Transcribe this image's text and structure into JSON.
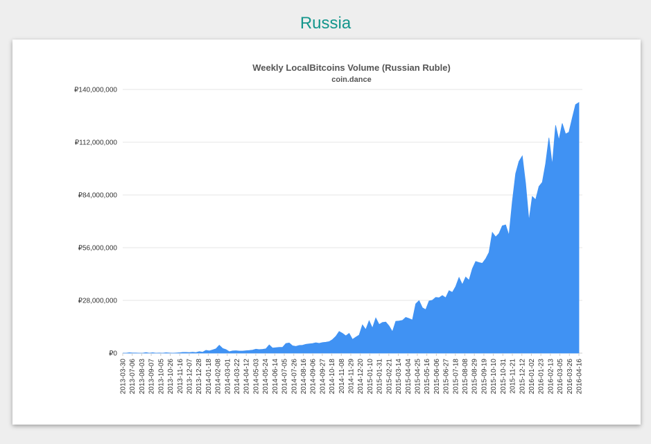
{
  "page": {
    "heading": "Russia"
  },
  "colors": {
    "heading": "#14968c",
    "area_fill": "#4092f3",
    "gridline": "#e6e6e6",
    "axis_text": "#333333"
  },
  "chart_data": {
    "type": "area",
    "title": "Weekly LocalBitcoins Volume (Russian Ruble)",
    "subtitle": "coin.dance",
    "xlabel": "",
    "ylabel": "",
    "ylim": [
      0,
      140000000
    ],
    "grid": true,
    "legend": "none",
    "y_ticks": [
      {
        "value": 0,
        "label": "₽0"
      },
      {
        "value": 28000000,
        "label": "₽28,000,000"
      },
      {
        "value": 56000000,
        "label": "₽56,000,000"
      },
      {
        "value": 84000000,
        "label": "₽84,000,000"
      },
      {
        "value": 112000000,
        "label": "₽112,000,000"
      },
      {
        "value": 140000000,
        "label": "₽140,000,000"
      }
    ],
    "x_tick_labels": [
      "2013-03-30",
      "2013-07-06",
      "2013-08-03",
      "2013-09-07",
      "2013-10-05",
      "2013-10-26",
      "2013-11-16",
      "2013-12-07",
      "2013-12-28",
      "2014-01-18",
      "2014-02-08",
      "2014-03-01",
      "2014-03-22",
      "2014-04-12",
      "2014-05-03",
      "2014-05-24",
      "2014-06-14",
      "2014-07-05",
      "2014-07-26",
      "2014-08-16",
      "2014-09-06",
      "2014-09-27",
      "2014-10-18",
      "2014-11-08",
      "2014-11-29",
      "2014-12-20",
      "2015-01-10",
      "2015-01-31",
      "2015-02-21",
      "2015-03-14",
      "2015-04-04",
      "2015-04-25",
      "2015-05-16",
      "2015-06-06",
      "2015-06-27",
      "2015-07-18",
      "2015-08-08",
      "2015-08-29",
      "2015-09-19",
      "2015-10-10",
      "2015-10-31",
      "2015-11-21",
      "2015-12-12",
      "2016-01-02",
      "2016-01-23",
      "2016-02-13",
      "2016-03-05",
      "2016-03-26",
      "2016-04-16"
    ],
    "series": [
      {
        "values": [
          0,
          0,
          200000,
          100000,
          100000,
          0,
          0,
          300000,
          0,
          200000,
          0,
          100000,
          0,
          200000,
          100000,
          0,
          100000,
          200000,
          400000,
          400000,
          300000,
          500000,
          300000,
          800000,
          500000,
          1500000,
          1200000,
          1700000,
          2300000,
          4200000,
          2500000,
          1900000,
          800000,
          1200000,
          1300000,
          1100000,
          1100000,
          1300000,
          1400000,
          1600000,
          2100000,
          1900000,
          2000000,
          2300000,
          4400000,
          2700000,
          2900000,
          3100000,
          3100000,
          5100000,
          5400000,
          3900000,
          3600000,
          4100000,
          4200000,
          4700000,
          4900000,
          5100000,
          5500000,
          5200000,
          5600000,
          5800000,
          6100000,
          7200000,
          8900000,
          11500000,
          10500000,
          9200000,
          10500000,
          7300000,
          8500000,
          9600000,
          15000000,
          12500000,
          17200000,
          13300000,
          18700000,
          15200000,
          16300000,
          16500000,
          14400000,
          11400000,
          16900000,
          17100000,
          17400000,
          19000000,
          18400000,
          17600000,
          26200000,
          27900000,
          24100000,
          23100000,
          27700000,
          28100000,
          29600000,
          29400000,
          30600000,
          29400000,
          33200000,
          32300000,
          35400000,
          40200000,
          36400000,
          40400000,
          38700000,
          44800000,
          48700000,
          48100000,
          47700000,
          50100000,
          53500000,
          64100000,
          61700000,
          63500000,
          67600000,
          68100000,
          62600000,
          80500000,
          95300000,
          101800000,
          104700000,
          90100000,
          70400000,
          83200000,
          81500000,
          88500000,
          90700000,
          100600000,
          114400000,
          100000000,
          121000000,
          113200000,
          122000000,
          116400000,
          117300000,
          124800000,
          132000000,
          133100000
        ]
      }
    ]
  }
}
